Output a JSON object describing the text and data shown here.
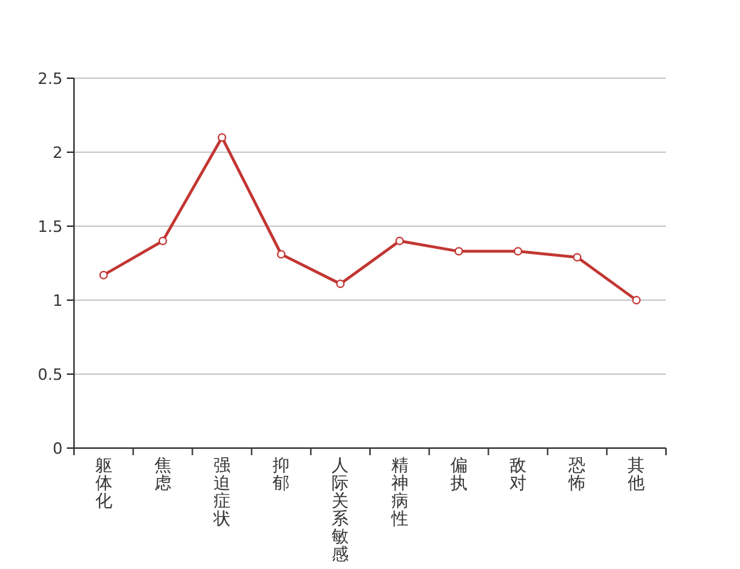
{
  "chart_data": {
    "type": "line",
    "categories": [
      "躯体化",
      "焦虑",
      "强迫症状",
      "抑郁",
      "人际关系敏感",
      "精神病性",
      "偏执",
      "敌对",
      "恐怖",
      "其他"
    ],
    "series": [
      {
        "color": "#c23531",
        "values": [
          1.17,
          1.4,
          2.1,
          1.31,
          1.11,
          1.4,
          1.33,
          1.33,
          1.29,
          1.0
        ]
      }
    ],
    "ylim": [
      0,
      2.5
    ],
    "yticks": [
      0,
      0.5,
      1,
      1.5,
      2,
      2.5
    ],
    "grid": "y",
    "marker": "circle",
    "line_style": "solid"
  }
}
